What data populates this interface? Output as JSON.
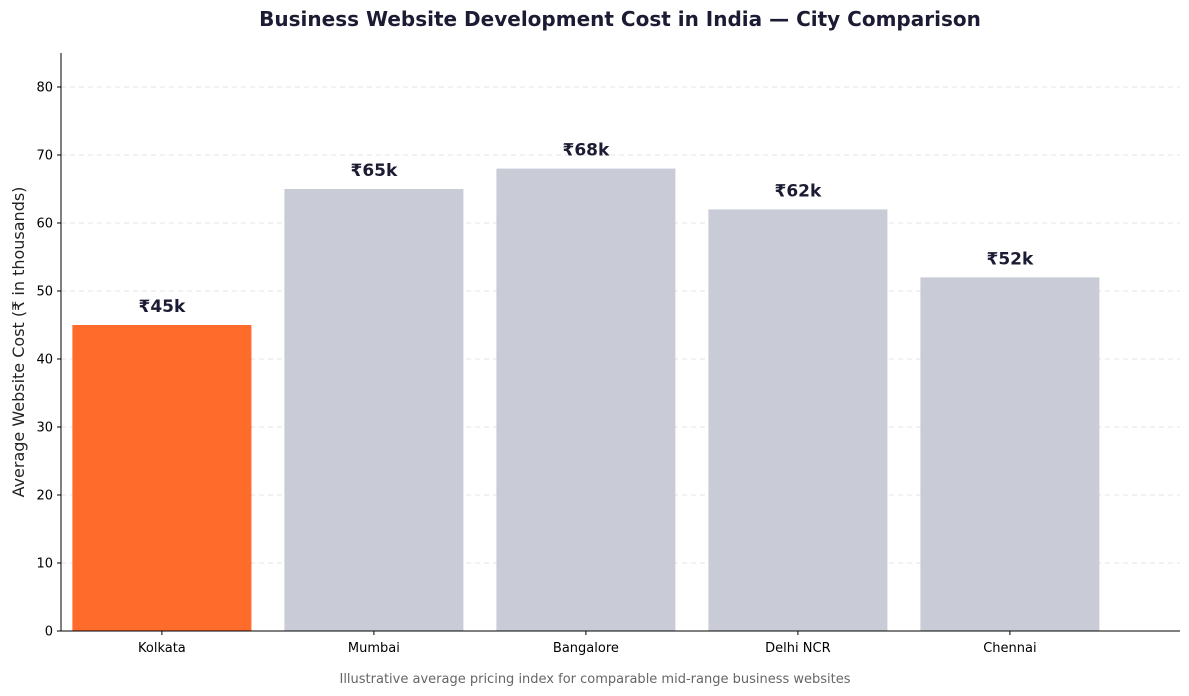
{
  "chart_data": {
    "type": "bar",
    "title": "Business Website Development Cost in India — City Comparison",
    "subtitle": "Illustrative average pricing index for comparable mid-range business websites",
    "xlabel": "",
    "ylabel": "Average Website Cost (₹ in thousands)",
    "ylim": [
      0,
      85
    ],
    "yticks": [
      0,
      10,
      20,
      30,
      40,
      50,
      60,
      70,
      80
    ],
    "grid": true,
    "categories": [
      "Kolkata",
      "Mumbai",
      "Bangalore",
      "Delhi NCR",
      "Chennai"
    ],
    "values": [
      45,
      65,
      68,
      62,
      52
    ],
    "data_labels": [
      "₹45k",
      "₹65k",
      "₹68k",
      "₹62k",
      "₹52k"
    ],
    "colors": [
      "#ff6b2b",
      "#c9ccd7",
      "#c9ccd7",
      "#c9ccd7",
      "#c9ccd7"
    ]
  }
}
